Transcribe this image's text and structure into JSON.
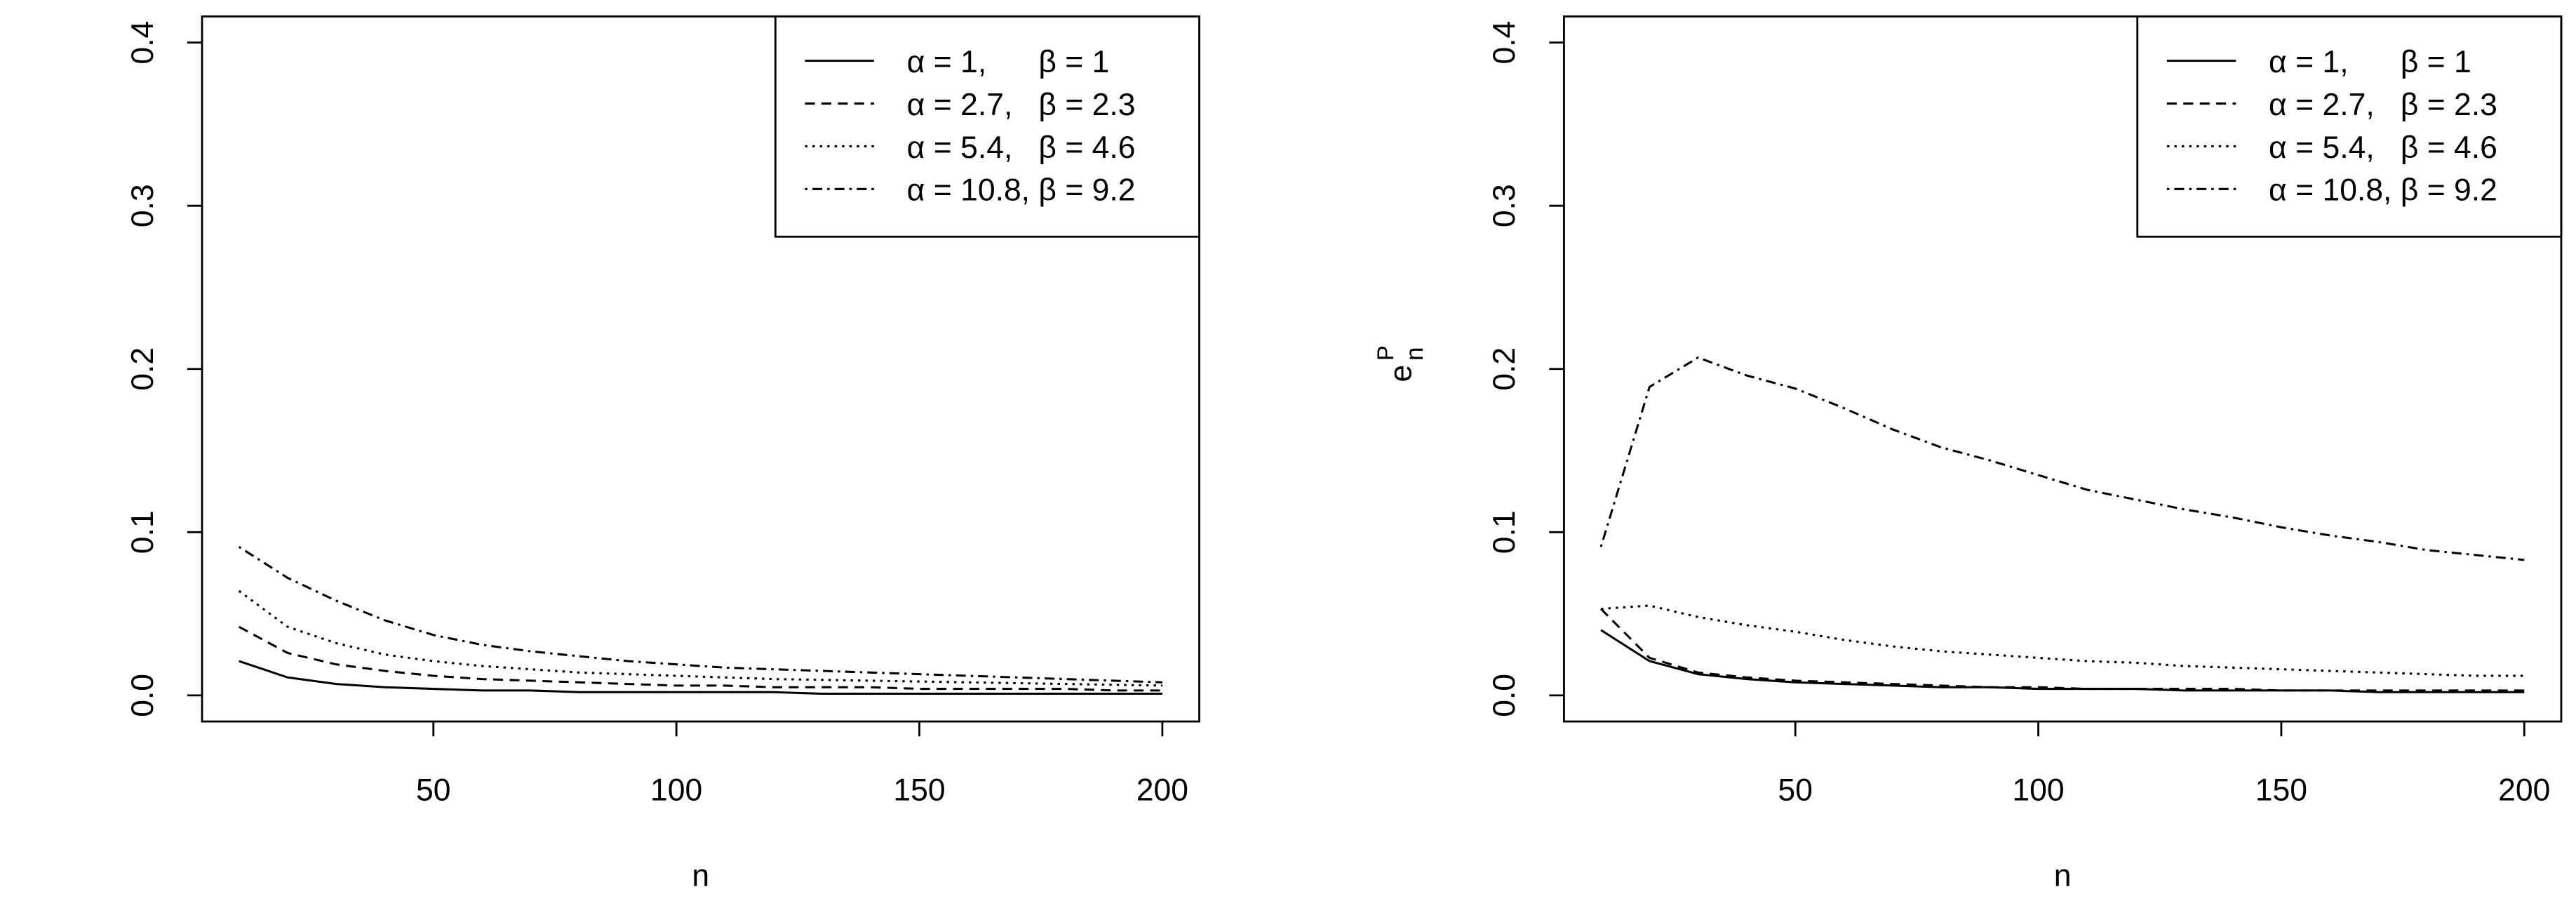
{
  "chart_data": [
    {
      "type": "line",
      "xlabel": "n",
      "x": [
        10,
        20,
        30,
        40,
        50,
        60,
        70,
        80,
        90,
        100,
        110,
        120,
        130,
        140,
        150,
        160,
        170,
        180,
        190,
        200
      ],
      "xlim": [
        2.4,
        207.6
      ],
      "xticks": [
        50,
        100,
        150,
        200
      ],
      "ylim": [
        -0.016,
        0.416
      ],
      "yticks": [
        {
          "value": 0,
          "label": "0.0"
        },
        0.1,
        0.2,
        0.3,
        0.4
      ],
      "legend": "top-right",
      "series": [
        {
          "name": "α = 1,      β = 1",
          "color": "#000000",
          "linestyle": "solid",
          "values": [
            0.021,
            0.011,
            0.007,
            0.005,
            0.004,
            0.003,
            0.003,
            0.002,
            0.002,
            0.002,
            0.002,
            0.002,
            0.001,
            0.001,
            0.001,
            0.001,
            0.001,
            0.001,
            0.001,
            0.001
          ]
        },
        {
          "name": "α = 2.7,   β = 2.3",
          "color": "#000000",
          "linestyle": "dashed",
          "values": [
            0.042,
            0.026,
            0.019,
            0.015,
            0.012,
            0.01,
            0.009,
            0.008,
            0.007,
            0.006,
            0.006,
            0.005,
            0.005,
            0.005,
            0.004,
            0.004,
            0.004,
            0.004,
            0.003,
            0.003
          ]
        },
        {
          "name": "α = 5.4,   β = 4.6",
          "color": "#000000",
          "linestyle": "dotted",
          "values": [
            0.064,
            0.042,
            0.032,
            0.025,
            0.021,
            0.018,
            0.016,
            0.014,
            0.013,
            0.012,
            0.011,
            0.01,
            0.0095,
            0.009,
            0.0085,
            0.008,
            0.0075,
            0.007,
            0.0065,
            0.006
          ]
        },
        {
          "name": "α = 10.8, β = 9.2",
          "color": "#000000",
          "linestyle": "dashdot",
          "values": [
            0.091,
            0.072,
            0.058,
            0.046,
            0.037,
            0.031,
            0.027,
            0.024,
            0.021,
            0.019,
            0.017,
            0.016,
            0.015,
            0.014,
            0.013,
            0.012,
            0.011,
            0.01,
            0.009,
            0.008
          ]
        }
      ]
    },
    {
      "type": "line",
      "xlabel": "n",
      "ylabel": "e",
      "ylabel_superscript": "P",
      "ylabel_subscript": "n",
      "x": [
        10,
        20,
        30,
        40,
        50,
        60,
        70,
        80,
        90,
        100,
        110,
        120,
        130,
        140,
        150,
        160,
        170,
        180,
        190,
        200
      ],
      "xlim": [
        2.4,
        207.6
      ],
      "xticks": [
        50,
        100,
        150,
        200
      ],
      "ylim": [
        -0.016,
        0.416
      ],
      "yticks": [
        {
          "value": 0,
          "label": "0.0"
        },
        0.1,
        0.2,
        0.3,
        0.4
      ],
      "legend": "top-right",
      "series": [
        {
          "name": "α = 1,      β = 1",
          "color": "#000000",
          "linestyle": "solid",
          "values": [
            0.04,
            0.021,
            0.013,
            0.01,
            0.008,
            0.007,
            0.006,
            0.005,
            0.005,
            0.004,
            0.004,
            0.004,
            0.003,
            0.003,
            0.003,
            0.003,
            0.002,
            0.002,
            0.002,
            0.002
          ]
        },
        {
          "name": "α = 2.7,   β = 2.3",
          "color": "#000000",
          "linestyle": "dashed",
          "values": [
            0.053,
            0.023,
            0.014,
            0.011,
            0.009,
            0.008,
            0.007,
            0.006,
            0.005,
            0.005,
            0.004,
            0.004,
            0.004,
            0.004,
            0.003,
            0.003,
            0.003,
            0.003,
            0.003,
            0.003
          ]
        },
        {
          "name": "α = 5.4,   β = 4.6",
          "color": "#000000",
          "linestyle": "dotted",
          "values": [
            0.053,
            0.055,
            0.048,
            0.043,
            0.039,
            0.034,
            0.03,
            0.027,
            0.025,
            0.023,
            0.021,
            0.02,
            0.018,
            0.017,
            0.016,
            0.015,
            0.014,
            0.013,
            0.012,
            0.012
          ]
        },
        {
          "name": "α = 10.8, β = 9.2",
          "color": "#000000",
          "linestyle": "dashdot",
          "values": [
            0.091,
            0.189,
            0.207,
            0.196,
            0.188,
            0.176,
            0.163,
            0.152,
            0.144,
            0.135,
            0.126,
            0.12,
            0.114,
            0.109,
            0.103,
            0.098,
            0.094,
            0.089,
            0.086,
            0.083
          ]
        }
      ]
    }
  ]
}
